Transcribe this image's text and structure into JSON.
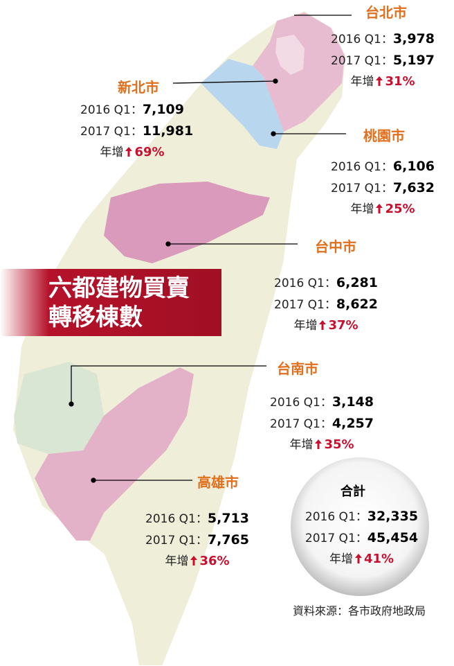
{
  "title": {
    "line1": "六都建物買賣",
    "line2": "轉移棟數"
  },
  "cities": [
    {
      "name": "台北市",
      "rows": [
        {
          "label": "2016 Q1：",
          "value": "3,978"
        },
        {
          "label": "2017 Q1：",
          "value": "5,197"
        }
      ],
      "growth_label": "年增",
      "growth": "31%"
    },
    {
      "name": "新北市",
      "rows": [
        {
          "label": "2016 Q1：",
          "value": "7,109"
        },
        {
          "label": "2017 Q1：",
          "value": "11,981"
        }
      ],
      "growth_label": "年增",
      "growth": "69%"
    },
    {
      "name": "桃園市",
      "rows": [
        {
          "label": "2016 Q1：",
          "value": "6,106"
        },
        {
          "label": "2017 Q1：",
          "value": "7,632"
        }
      ],
      "growth_label": "年增",
      "growth": "25%"
    },
    {
      "name": "台中市",
      "rows": [
        {
          "label": "2016 Q1：",
          "value": "6,281"
        },
        {
          "label": "2017 Q1：",
          "value": "8,622"
        }
      ],
      "growth_label": "年增",
      "growth": "37%"
    },
    {
      "name": "台南市",
      "rows": [
        {
          "label": "2016 Q1：",
          "value": "3,148"
        },
        {
          "label": "2017 Q1：",
          "value": "4,257"
        }
      ],
      "growth_label": "年增",
      "growth": "35%"
    },
    {
      "name": "高雄市",
      "rows": [
        {
          "label": "2016 Q1：",
          "value": "5,713"
        },
        {
          "label": "2017 Q1：",
          "value": "7,765"
        }
      ],
      "growth_label": "年增",
      "growth": "36%"
    }
  ],
  "total": {
    "name": "合計",
    "rows": [
      {
        "label": "2016 Q1：",
        "value": "32,335"
      },
      {
        "label": "2017 Q1：",
        "value": "45,454"
      }
    ],
    "growth_label": "年增",
    "growth": "41%"
  },
  "source": "資料來源：各市政府地政局"
}
